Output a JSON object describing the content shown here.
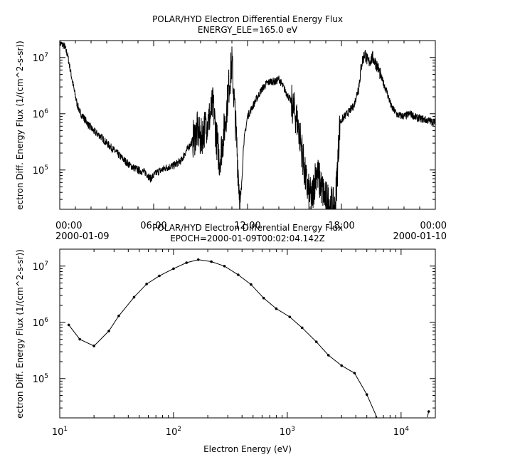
{
  "chart_data": [
    {
      "type": "line",
      "title": "POLAR/HYD  Electron Differential Energy Flux",
      "subtitle": "ENERGY_ELE=165.0 eV",
      "ylabel": "ectron Diff. Energy Flux (1/(cm^2-s-sr))",
      "xlabel": "",
      "xscale": "linear",
      "yscale": "log",
      "xlim": [
        0,
        24
      ],
      "ylim": [
        20000,
        20000000
      ],
      "grid": false,
      "x_tick_labels": [
        {
          "x": 0,
          "lines": [
            "00:00",
            "2000-01-09"
          ]
        },
        {
          "x": 6,
          "lines": [
            "06:00"
          ]
        },
        {
          "x": 12,
          "lines": [
            "12:00"
          ]
        },
        {
          "x": 18,
          "lines": [
            "18:00"
          ]
        },
        {
          "x": 24,
          "lines": [
            "00:00",
            "2000-01-10"
          ]
        }
      ],
      "y_ticks": [
        {
          "value": 100000,
          "base": "10",
          "exp": "5"
        },
        {
          "value": 1000000,
          "base": "10",
          "exp": "6"
        },
        {
          "value": 10000000,
          "base": "10",
          "exp": "7"
        }
      ],
      "series": [
        {
          "x_unit": "hours",
          "points": [
            [
              0.0,
              18000000
            ],
            [
              0.3,
              16000000
            ],
            [
              0.5,
              11000000
            ],
            [
              0.7,
              5500000
            ],
            [
              0.9,
              2800000
            ],
            [
              1.1,
              1500000
            ],
            [
              1.3,
              1050000
            ],
            [
              1.6,
              800000
            ],
            [
              1.9,
              600000
            ],
            [
              2.2,
              480000
            ],
            [
              2.6,
              400000
            ],
            [
              3.0,
              300000
            ],
            [
              3.5,
              220000
            ],
            [
              4.0,
              160000
            ],
            [
              4.5,
              120000
            ],
            [
              5.0,
              100000
            ],
            [
              5.5,
              90000
            ],
            [
              5.8,
              70000
            ],
            [
              6.2,
              90000
            ],
            [
              6.8,
              110000
            ],
            [
              7.3,
              120000
            ],
            [
              7.8,
              150000
            ],
            [
              8.0,
              200000
            ],
            [
              8.4,
              300000
            ],
            [
              8.8,
              500000
            ],
            [
              9.0,
              350000
            ],
            [
              9.3,
              600000
            ],
            [
              9.6,
              900000
            ],
            [
              9.8,
              1500000
            ],
            [
              10.0,
              400000
            ],
            [
              10.2,
              150000
            ],
            [
              10.4,
              300000
            ],
            [
              10.6,
              800000
            ],
            [
              10.8,
              3000000
            ],
            [
              11.0,
              8000000
            ],
            [
              11.2,
              1000000
            ],
            [
              11.4,
              100000
            ],
            [
              11.55,
              20000
            ],
            [
              11.75,
              300000
            ],
            [
              12.0,
              900000
            ],
            [
              12.3,
              1300000
            ],
            [
              12.6,
              1900000
            ],
            [
              12.9,
              2700000
            ],
            [
              13.2,
              3400000
            ],
            [
              13.5,
              3800000
            ],
            [
              13.8,
              3700000
            ],
            [
              14.0,
              4200000
            ],
            [
              14.2,
              3300000
            ],
            [
              14.5,
              2300000
            ],
            [
              14.8,
              1600000
            ],
            [
              15.1,
              900000
            ],
            [
              15.3,
              500000
            ],
            [
              15.5,
              200000
            ],
            [
              15.7,
              70000
            ],
            [
              15.9,
              40000
            ],
            [
              16.1,
              30000
            ],
            [
              16.4,
              100000
            ],
            [
              16.7,
              50000
            ],
            [
              17.0,
              30000
            ],
            [
              17.3,
              25000
            ],
            [
              17.6,
              20000
            ],
            [
              17.9,
              700000
            ],
            [
              18.2,
              900000
            ],
            [
              18.5,
              1100000
            ],
            [
              18.8,
              1400000
            ],
            [
              19.1,
              3000000
            ],
            [
              19.3,
              8000000
            ],
            [
              19.5,
              12000000
            ],
            [
              19.7,
              8000000
            ],
            [
              20.0,
              10000000
            ],
            [
              20.3,
              7000000
            ],
            [
              20.6,
              4000000
            ],
            [
              20.9,
              2500000
            ],
            [
              21.2,
              1300000
            ],
            [
              21.6,
              950000
            ],
            [
              22.0,
              900000
            ],
            [
              22.4,
              1000000
            ],
            [
              22.8,
              850000
            ],
            [
              23.2,
              800000
            ],
            [
              23.6,
              750000
            ],
            [
              24.0,
              700000
            ]
          ]
        }
      ]
    },
    {
      "type": "line",
      "title": "POLAR/HYD  Electron Differential Energy Flux",
      "subtitle": "EPOCH=2000-01-09T00:02:04.142Z",
      "xlabel": "Electron Energy (eV)",
      "ylabel": "ectron Diff. Energy Flux (1/(cm^2-s-sr))",
      "xscale": "log",
      "yscale": "log",
      "xlim": [
        10,
        20000
      ],
      "ylim": [
        20000,
        20000000
      ],
      "grid": false,
      "x_ticks": [
        {
          "value": 10,
          "base": "10",
          "exp": "1"
        },
        {
          "value": 100,
          "base": "10",
          "exp": "2"
        },
        {
          "value": 1000,
          "base": "10",
          "exp": "3"
        },
        {
          "value": 10000,
          "base": "10",
          "exp": "4"
        }
      ],
      "y_ticks": [
        {
          "value": 100000,
          "base": "10",
          "exp": "5"
        },
        {
          "value": 1000000,
          "base": "10",
          "exp": "6"
        },
        {
          "value": 10000000,
          "base": "10",
          "exp": "7"
        }
      ],
      "series": [
        {
          "x": [
            12,
            15,
            20,
            27,
            33,
            45,
            58,
            75,
            100,
            130,
            165,
            215,
            280,
            370,
            480,
            620,
            800,
            1050,
            1350,
            1800,
            2300,
            3000,
            3900,
            5000,
            6300,
            17500
          ],
          "y": [
            900000,
            500000,
            380000,
            700000,
            1300000,
            2800000,
            4800000,
            6700000,
            9000000,
            11500000,
            13000000,
            12000000,
            10000000,
            7000000,
            4700000,
            2700000,
            1750000,
            1250000,
            800000,
            450000,
            260000,
            170000,
            125000,
            52000,
            18000,
            26000
          ]
        }
      ]
    }
  ]
}
